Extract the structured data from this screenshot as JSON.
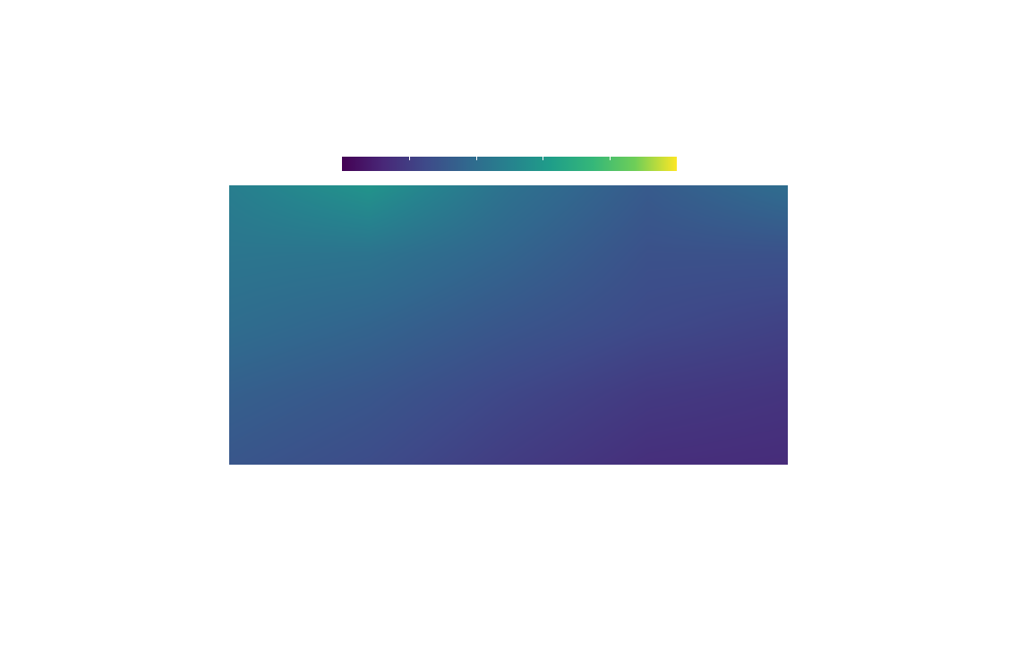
{
  "chart_data": {
    "type": "heatmap",
    "colormap": "viridis",
    "colorbar": {
      "orientation": "horizontal",
      "placement": "top",
      "tick_labels": [],
      "tick_count": 4
    },
    "axes_visible": false,
    "grid": false,
    "x": [
      0.0,
      0.25,
      0.5,
      0.75,
      1.0
    ],
    "y": [
      1.0,
      0.75,
      0.5,
      0.25,
      0.0
    ],
    "z": [
      [
        0.48,
        0.58,
        0.42,
        0.32,
        0.4
      ],
      [
        0.44,
        0.43,
        0.36,
        0.28,
        0.28
      ],
      [
        0.4,
        0.36,
        0.3,
        0.25,
        0.22
      ],
      [
        0.34,
        0.3,
        0.24,
        0.19,
        0.17
      ],
      [
        0.3,
        0.26,
        0.2,
        0.15,
        0.14
      ]
    ],
    "zlim": [
      0,
      1
    ]
  }
}
